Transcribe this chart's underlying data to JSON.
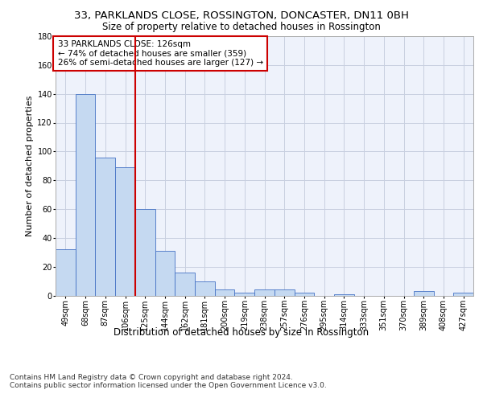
{
  "title1": "33, PARKLANDS CLOSE, ROSSINGTON, DONCASTER, DN11 0BH",
  "title2": "Size of property relative to detached houses in Rossington",
  "xlabel": "Distribution of detached houses by size in Rossington",
  "ylabel": "Number of detached properties",
  "categories": [
    "49sqm",
    "68sqm",
    "87sqm",
    "106sqm",
    "125sqm",
    "144sqm",
    "162sqm",
    "181sqm",
    "200sqm",
    "219sqm",
    "238sqm",
    "257sqm",
    "276sqm",
    "295sqm",
    "314sqm",
    "333sqm",
    "351sqm",
    "370sqm",
    "389sqm",
    "408sqm",
    "427sqm"
  ],
  "values": [
    32,
    140,
    96,
    89,
    60,
    31,
    16,
    10,
    4,
    2,
    4,
    4,
    2,
    0,
    1,
    0,
    0,
    0,
    3,
    0,
    2
  ],
  "bar_color": "#c5d9f1",
  "bar_edge_color": "#4472c4",
  "annotation_line1": "33 PARKLANDS CLOSE: 126sqm",
  "annotation_line2": "← 74% of detached houses are smaller (359)",
  "annotation_line3": "26% of semi-detached houses are larger (127) →",
  "annotation_box_color": "#ffffff",
  "annotation_box_edge": "#cc0000",
  "vline_color": "#cc0000",
  "footer1": "Contains HM Land Registry data © Crown copyright and database right 2024.",
  "footer2": "Contains public sector information licensed under the Open Government Licence v3.0.",
  "ylim": [
    0,
    180
  ],
  "yticks": [
    0,
    20,
    40,
    60,
    80,
    100,
    120,
    140,
    160,
    180
  ],
  "background_color": "#eef2fb",
  "grid_color": "#c8cfe0",
  "title1_fontsize": 9.5,
  "title2_fontsize": 8.5,
  "xlabel_fontsize": 8.5,
  "ylabel_fontsize": 8,
  "tick_fontsize": 7,
  "annotation_fontsize": 7.5,
  "footer_fontsize": 6.5
}
